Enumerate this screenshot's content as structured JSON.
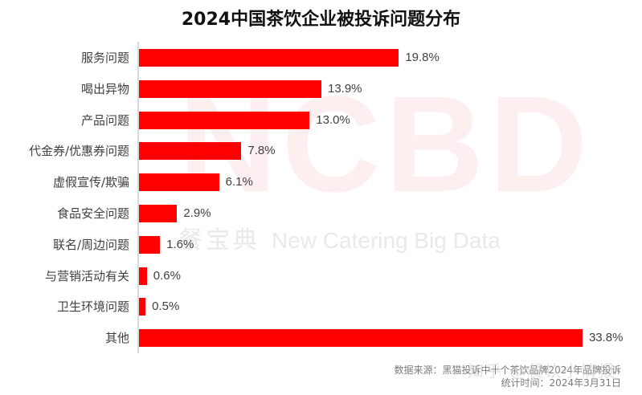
{
  "title": "2024中国茶饮企业被投诉问题分布",
  "watermark": {
    "big": "NCBD",
    "small_cn": "餐宝典",
    "small_en": "New Catering Big Data",
    "overlay": "知乎 @餐饮小情报"
  },
  "footer": {
    "source": "数据来源：黑猫投诉中十个茶饮品牌2024年品牌投诉",
    "date": "统计时间：2024年3月31日"
  },
  "colors": {
    "bar": "#ff0000",
    "text": "#404040",
    "axis": "#d6dbe0"
  },
  "chart_data": {
    "type": "bar",
    "orientation": "horizontal",
    "title": "2024中国茶饮企业被投诉问题分布",
    "xlabel": "",
    "ylabel": "",
    "unit": "%",
    "categories": [
      "服务问题",
      "喝出异物",
      "产品问题",
      "代金券/优惠券问题",
      "虚假宣传/欺骗",
      "食品安全问题",
      "联名/周边问题",
      "与营销活动有关",
      "卫生环境问题",
      "其他"
    ],
    "values": [
      19.8,
      13.9,
      13.0,
      7.8,
      6.1,
      2.9,
      1.6,
      0.6,
      0.5,
      33.8
    ],
    "value_labels": [
      "19.8%",
      "13.9%",
      "13.0%",
      "7.8%",
      "6.1%",
      "2.9%",
      "1.6%",
      "0.6%",
      "0.5%",
      "33.8%"
    ],
    "grid": false,
    "legend": null,
    "bar_color": "#ff0000"
  }
}
